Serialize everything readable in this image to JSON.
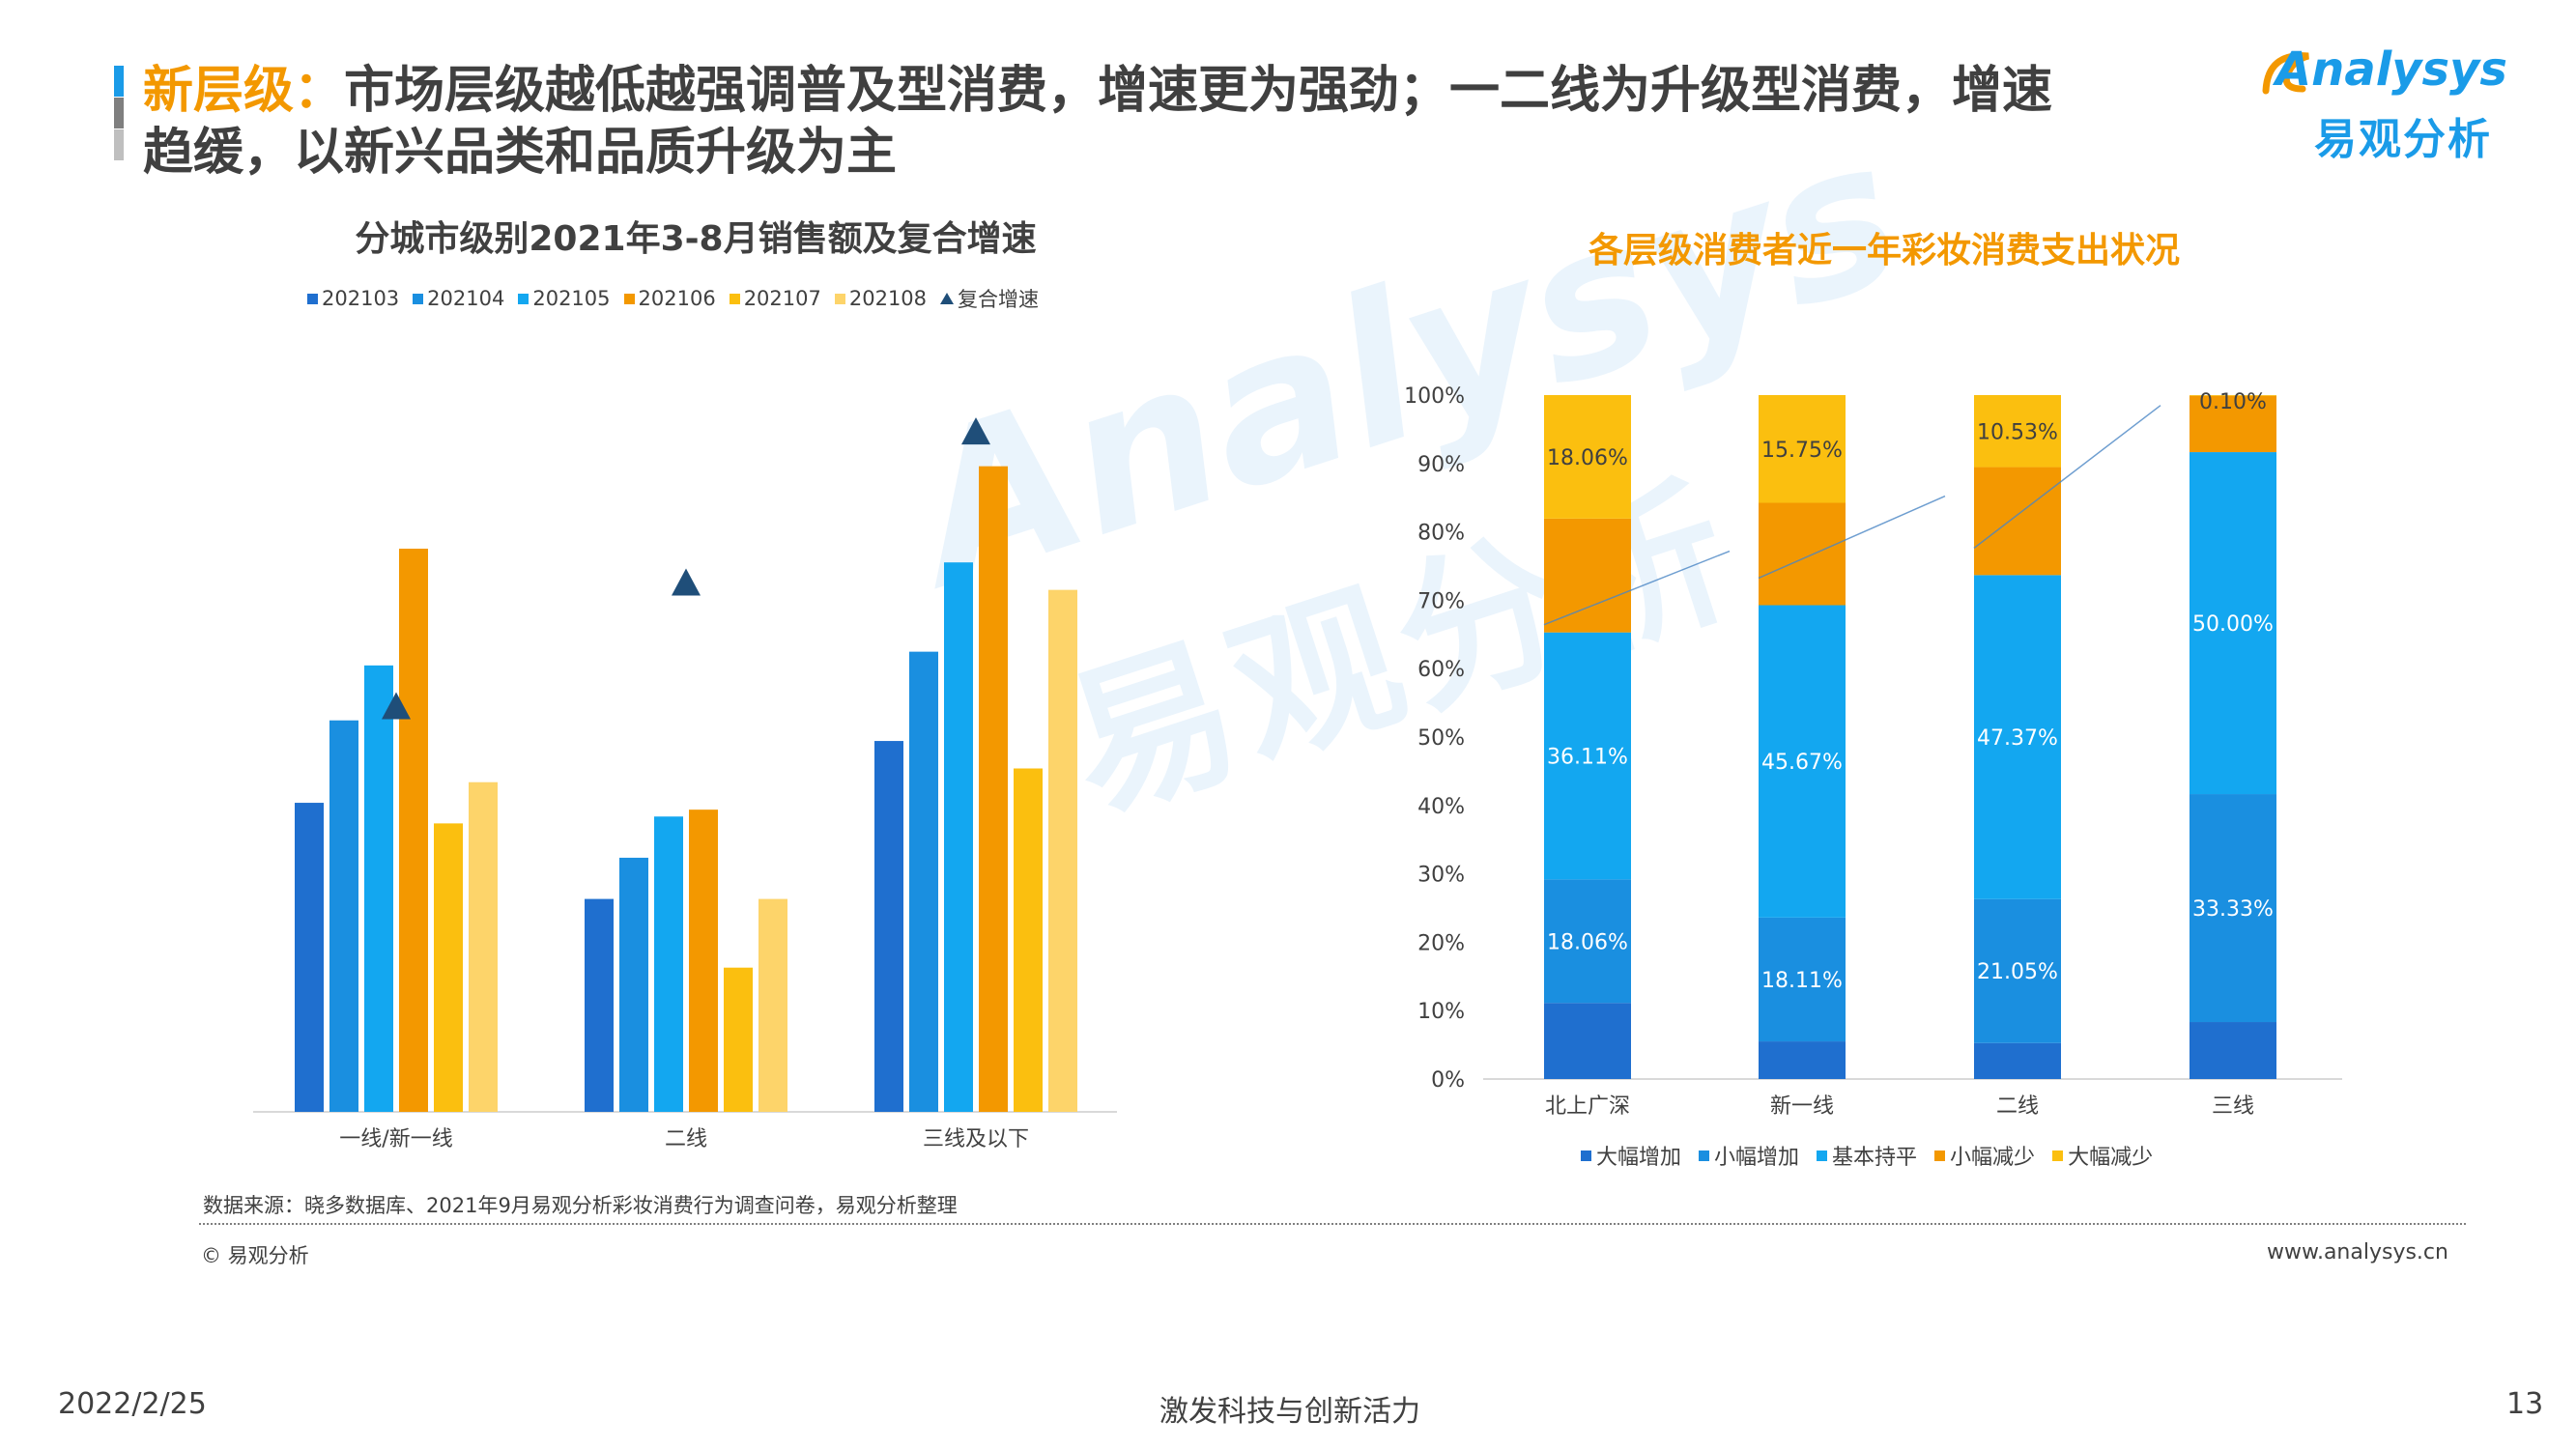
{
  "header": {
    "title_highlight": "新层级",
    "title_colon": "：",
    "title_line1": "市场层级越低越强调普及型消费，增速更为强劲；一二线为升级型消费，增速",
    "title_line2": "趋缓，以新兴品类和品质升级为主"
  },
  "logo": {
    "en": "Analysys",
    "cn": "易观分析"
  },
  "watermark": {
    "en": "Analysys",
    "cn": "易观分析"
  },
  "colors": {
    "blue_dark": "#1f6fcf",
    "blue_mid": "#1a8fe0",
    "blue_light": "#13a7f0",
    "orange": "#f39800",
    "yellow": "#fbbf0f",
    "yellow_light": "#fdd46a",
    "triangle": "#1f4e79",
    "title_bar": [
      "#1a9be8",
      "#7f7f7f",
      "#bfbfbf"
    ]
  },
  "chart_data": [
    {
      "type": "bar",
      "title": "分城市级别2021年3-8月销售额及复合增速",
      "categories": [
        "一线/新一线",
        "二线",
        "三线及以下"
      ],
      "series": [
        {
          "name": "202103",
          "values": [
            45,
            31,
            54
          ]
        },
        {
          "name": "202104",
          "values": [
            57,
            37,
            67
          ]
        },
        {
          "name": "202105",
          "values": [
            65,
            43,
            80
          ]
        },
        {
          "name": "202106",
          "values": [
            82,
            44,
            94
          ]
        },
        {
          "name": "202107",
          "values": [
            42,
            21,
            50
          ]
        },
        {
          "name": "202108",
          "values": [
            48,
            31,
            76
          ]
        }
      ],
      "marker_series": {
        "name": "复合增速",
        "shape": "triangle",
        "values": [
          59,
          77,
          99
        ]
      },
      "ylim": [
        0,
        100
      ],
      "y_axis_shown": false,
      "legend_position": "top",
      "grid": false
    },
    {
      "type": "bar",
      "stacked": true,
      "normalized": true,
      "title": "各层级消费者近一年彩妆消费支出状况",
      "categories": [
        "北上广深",
        "新一线",
        "二线",
        "三线"
      ],
      "series": [
        {
          "name": "大幅增加",
          "values": [
            11.13,
            5.5,
            5.26,
            8.33
          ],
          "labels": [
            "",
            "",
            "",
            ""
          ]
        },
        {
          "name": "小幅增加",
          "values": [
            18.06,
            18.11,
            21.05,
            33.33
          ],
          "labels": [
            "18.06%",
            "18.11%",
            "21.05%",
            "33.33%"
          ]
        },
        {
          "name": "基本持平",
          "values": [
            36.11,
            45.67,
            47.37,
            50.0
          ],
          "labels": [
            "36.11%",
            "45.67%",
            "47.37%",
            "50.00%"
          ]
        },
        {
          "name": "小幅减少",
          "values": [
            16.64,
            14.97,
            15.79,
            8.24
          ],
          "labels": [
            "",
            "",
            "",
            ""
          ]
        },
        {
          "name": "大幅减少",
          "values": [
            18.06,
            15.75,
            10.53,
            0.1
          ],
          "labels": [
            "18.06%",
            "15.75%",
            "10.53%",
            "0.10%"
          ]
        }
      ],
      "y_ticks": [
        "0%",
        "10%",
        "20%",
        "30%",
        "40%",
        "50%",
        "60%",
        "70%",
        "80%",
        "90%",
        "100%"
      ],
      "ylim": [
        0,
        100
      ],
      "legend_position": "bottom",
      "grid": false
    }
  ],
  "source_note": "数据来源：晓多数据库、2021年9月易观分析彩妆消费行为调查问卷，易观分析整理",
  "copyright": "© 易观分析",
  "website": "www.analysys.cn",
  "footer": {
    "date": "2022/2/25",
    "slogan": "激发科技与创新活力",
    "page": "13"
  }
}
